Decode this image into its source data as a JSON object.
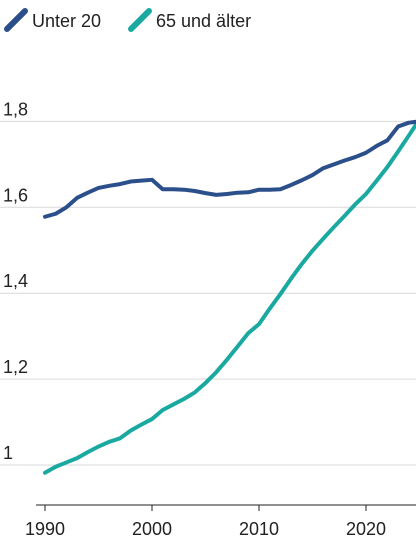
{
  "chart_data": {
    "type": "line",
    "title": "",
    "xlabel": "",
    "ylabel": "",
    "xlim": [
      1990,
      2025
    ],
    "ylim": [
      0.95,
      1.83
    ],
    "grid": "horizontal",
    "legend_position": "top-left",
    "x_ticks": [
      {
        "value": 1990,
        "label": "1990"
      },
      {
        "value": 2000,
        "label": "2000"
      },
      {
        "value": 2010,
        "label": "2010"
      },
      {
        "value": 2020,
        "label": "2020"
      }
    ],
    "y_ticks": [
      {
        "value": 1.0,
        "label": "1"
      },
      {
        "value": 1.2,
        "label": "1,2"
      },
      {
        "value": 1.4,
        "label": "1,4"
      },
      {
        "value": 1.6,
        "label": "1,6"
      },
      {
        "value": 1.8,
        "label": "1,8"
      }
    ],
    "x": [
      1990,
      1991,
      1992,
      1993,
      1994,
      1995,
      1996,
      1997,
      1998,
      1999,
      2000,
      2001,
      2002,
      2003,
      2004,
      2005,
      2006,
      2007,
      2008,
      2009,
      2010,
      2011,
      2012,
      2013,
      2014,
      2015,
      2016,
      2017,
      2018,
      2019,
      2020,
      2021,
      2022,
      2023,
      2024,
      2025
    ],
    "series": [
      {
        "name": "Unter 20",
        "color": "#2b4f8a",
        "values": [
          1.578,
          1.585,
          1.6,
          1.622,
          1.634,
          1.645,
          1.65,
          1.654,
          1.66,
          1.662,
          1.664,
          1.642,
          1.642,
          1.641,
          1.638,
          1.633,
          1.629,
          1.631,
          1.634,
          1.635,
          1.641,
          1.641,
          1.642,
          1.652,
          1.663,
          1.675,
          1.691,
          1.7,
          1.709,
          1.717,
          1.727,
          1.743,
          1.756,
          1.788,
          1.797,
          1.8
        ]
      },
      {
        "name": "65 und älter",
        "color": "#1aa9a0",
        "values": [
          0.982,
          0.996,
          1.006,
          1.016,
          1.03,
          1.043,
          1.054,
          1.062,
          1.08,
          1.094,
          1.107,
          1.128,
          1.141,
          1.154,
          1.169,
          1.191,
          1.216,
          1.245,
          1.276,
          1.307,
          1.328,
          1.364,
          1.398,
          1.434,
          1.468,
          1.499,
          1.527,
          1.554,
          1.58,
          1.607,
          1.631,
          1.662,
          1.694,
          1.73,
          1.767,
          1.805
        ]
      }
    ]
  }
}
